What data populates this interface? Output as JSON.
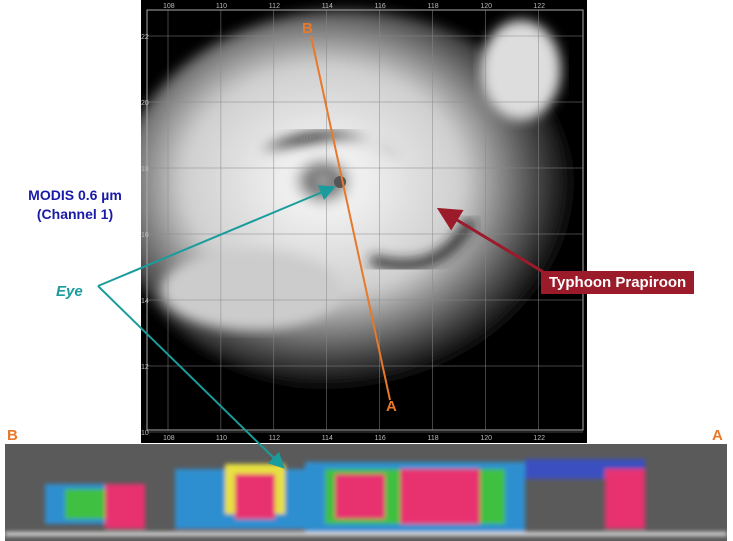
{
  "labels": {
    "modis_line1": "MODIS 0.6 µm",
    "modis_line2": "(Channel 1)",
    "eye": "Eye",
    "typhoon": "Typhoon Prapiroon",
    "point_b": "B",
    "point_a": "A",
    "curtain_b": "B",
    "curtain_a": "A"
  },
  "map": {
    "lon_ticks": [
      "108",
      "110",
      "112",
      "114",
      "116",
      "118",
      "120",
      "122"
    ],
    "lat_ticks": [
      "22",
      "20",
      "18",
      "16",
      "14",
      "12",
      "10"
    ]
  },
  "colors": {
    "modis_text": "#1a1aa8",
    "eye_arrow": "#1a9c9c",
    "typhoon_badge": "#9b1b2a",
    "track": "#e8782a"
  }
}
